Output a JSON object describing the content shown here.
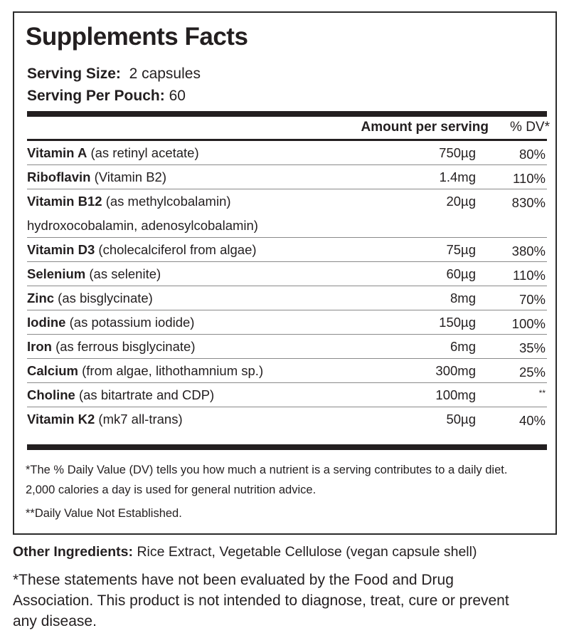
{
  "title": "Supplements Facts",
  "serving": {
    "size_label": "Serving Size:",
    "size_value": "2 capsules",
    "pouch_label": "Serving Per Pouch:",
    "pouch_value": "60"
  },
  "columns": {
    "amount": "Amount per serving",
    "dv": "% DV*"
  },
  "nutrients": [
    {
      "name": "Vitamin A",
      "detail": "(as retinyl acetate)",
      "amount": "750µg",
      "dv": "80%"
    },
    {
      "name": "Riboflavin",
      "detail": "(Vitamin B2)",
      "amount": "1.4mg",
      "dv": "110%"
    },
    {
      "name": "Vitamin B12",
      "detail": "(as methylcobalamin)",
      "detail2": "hydroxocobalamin, adenosylcobalamin)",
      "amount": "20µg",
      "dv": "830%"
    },
    {
      "name": "Vitamin D3",
      "detail": "(cholecalciferol from algae)",
      "amount": "75µg",
      "dv": "380%"
    },
    {
      "name": "Selenium",
      "detail": "(as selenite)",
      "amount": "60µg",
      "dv": "110%"
    },
    {
      "name": "Zinc",
      "detail": "(as bisglycinate)",
      "amount": "8mg",
      "dv": "70%"
    },
    {
      "name": "Iodine",
      "detail": " (as potassium iodide)",
      "amount": "150µg",
      "dv": "100%"
    },
    {
      "name": "Iron",
      "detail": "(as ferrous bisglycinate)",
      "amount": "6mg",
      "dv": "35%"
    },
    {
      "name": "Calcium",
      "detail": "(from algae, lithothamnium sp.)",
      "amount": "300mg",
      "dv": "25%"
    },
    {
      "name": "Choline",
      "detail": "(as bitartrate and CDP)",
      "amount": "100mg",
      "dv": "**"
    },
    {
      "name": "Vitamin K2",
      "detail": "(mk7 all-trans)",
      "amount": "50µg",
      "dv": "40%"
    }
  ],
  "footnotes": {
    "dv_note": "*The % Daily Value (DV) tells you how much a nutrient is a serving contributes to a daily diet. 2,000 calories a day is used for general nutrition advice.",
    "not_established": "**Daily Value Not Established."
  },
  "other_ingredients": {
    "label": "Other Ingredients:",
    "value": "Rice Extract, Vegetable Cellulose (vegan capsule shell)"
  },
  "disclaimer": "*These statements have not been evaluated by the Food and Drug Association. This product is not intended to diagnose, treat, cure or prevent any disease."
}
